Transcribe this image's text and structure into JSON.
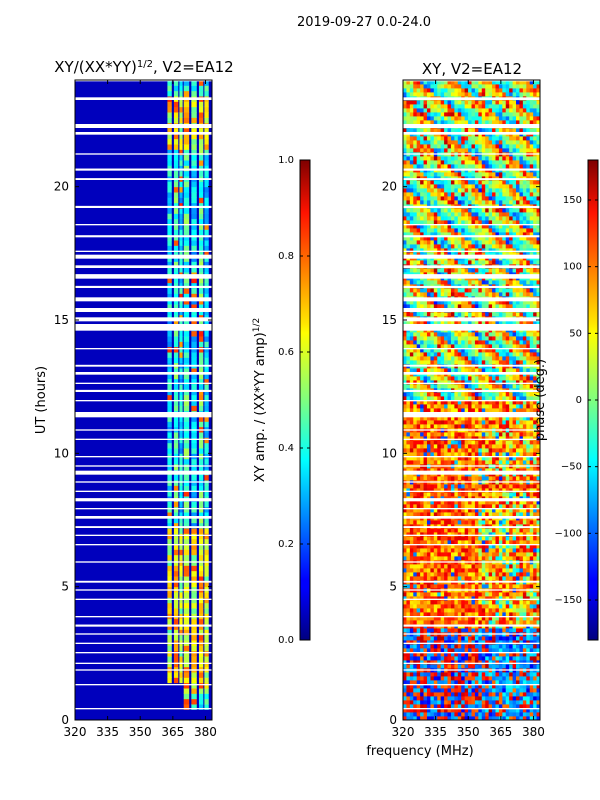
{
  "suptitle": "2019-09-27 0.0-24.0",
  "colors": {
    "background": "#ffffff",
    "white_gap": "#ffffff",
    "frame": "#000000"
  },
  "chart_data": [
    {
      "type": "heatmap",
      "title_main": "XY/(XX*YY)",
      "title_sup": "1/2",
      "title_tail": ", V2=EA12",
      "xlabel": "",
      "ylabel": "UT (hours)",
      "xlim": [
        320,
        383
      ],
      "ylim": [
        0,
        24
      ],
      "xticks": [
        320,
        335,
        350,
        365,
        380
      ],
      "yticks": [
        0,
        5,
        10,
        15,
        20
      ],
      "colormap": "jet",
      "clim": [
        0,
        1
      ],
      "colorbar": {
        "label_main": "XY amp. / (XX*YY amp)",
        "label_sup": "1/2",
        "ticks": [
          "0.0",
          "0.2",
          "0.4",
          "0.6",
          "0.8",
          "1.0"
        ],
        "tick_values": [
          0,
          0.2,
          0.4,
          0.6,
          0.8,
          1.0
        ]
      },
      "description": "mostly low amplitude (~0.05) with elevated bands between 362-382 MHz, strongest in 1-7 UT and 21-23 UT"
    },
    {
      "type": "heatmap",
      "title": "XY, V2=EA12",
      "xlabel": "frequency (MHz)",
      "ylabel": "",
      "xlim": [
        320,
        383
      ],
      "ylim": [
        0,
        24
      ],
      "xticks": [
        320,
        335,
        350,
        365,
        380
      ],
      "yticks": [
        0,
        5,
        10,
        15,
        20
      ],
      "colormap": "jet",
      "clim": [
        -180,
        180
      ],
      "colorbar": {
        "label": "phase (deg.)",
        "ticks": [
          "−150",
          "−100",
          "−50",
          "0",
          "50",
          "100",
          "150"
        ],
        "tick_values": [
          -150,
          -100,
          -50,
          0,
          50,
          100,
          150
        ]
      },
      "description": "noisy phase, positive (yellow-red) 2-12 UT, mixed blue-green 12-24 UT with diagonal phase-wrap stripes"
    }
  ]
}
